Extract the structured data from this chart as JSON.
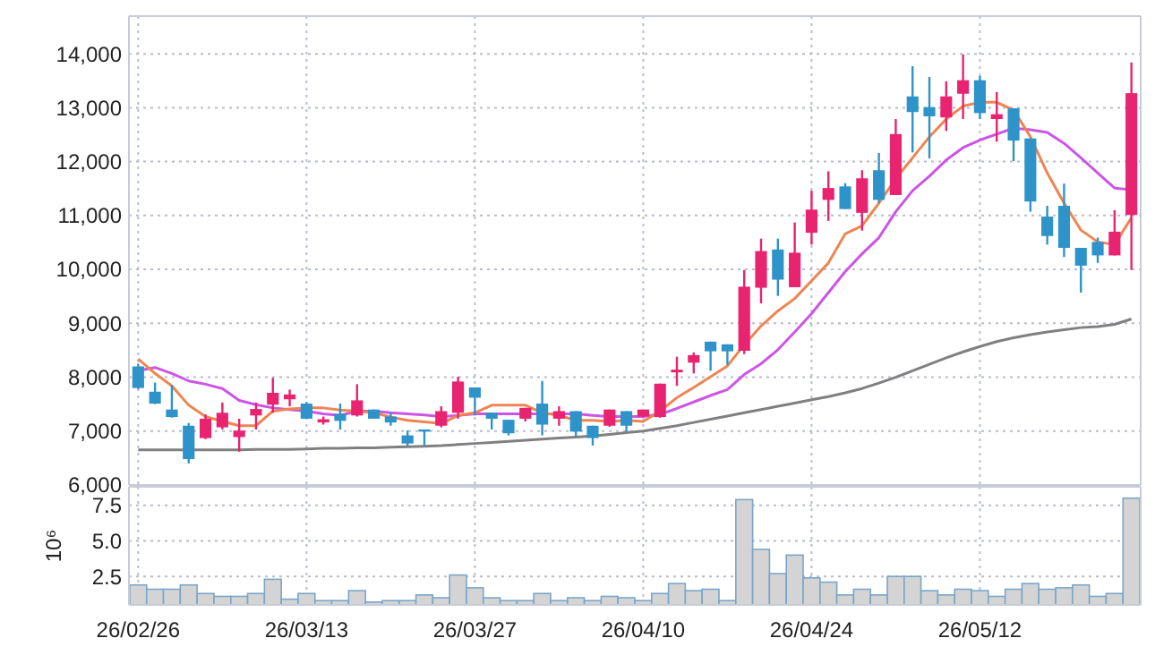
{
  "chart_data": [
    {
      "type": "candlestick",
      "categories": [
        null,
        null,
        null,
        null,
        null,
        null,
        null,
        null,
        null,
        null,
        null,
        null,
        null,
        null,
        null,
        null,
        null,
        null,
        null,
        null,
        null,
        null,
        null,
        null,
        null,
        null,
        null,
        null,
        null,
        null,
        null,
        null,
        null,
        null,
        null,
        null,
        null,
        null,
        null,
        null,
        null,
        null,
        null,
        null,
        null,
        null,
        null,
        null,
        null,
        null,
        null,
        null,
        null,
        null,
        null,
        null,
        null,
        null,
        null,
        null
      ],
      "ohlc": [
        [
          8200,
          8250,
          7780,
          7800
        ],
        [
          7730,
          7900,
          7500,
          7510
        ],
        [
          7400,
          7850,
          7250,
          7260
        ],
        [
          7100,
          7150,
          6400,
          6480
        ],
        [
          6870,
          7310,
          6850,
          7230
        ],
        [
          7070,
          7530,
          7030,
          7340
        ],
        [
          6890,
          7230,
          6620,
          7010
        ],
        [
          7290,
          7530,
          7030,
          7410
        ],
        [
          7490,
          7990,
          7340,
          7710
        ],
        [
          7590,
          7770,
          7460,
          7680
        ],
        [
          7510,
          7540,
          7230,
          7230
        ],
        [
          7160,
          7270,
          7120,
          7220
        ],
        [
          7320,
          7510,
          7030,
          7190
        ],
        [
          7290,
          7870,
          7270,
          7570
        ],
        [
          7400,
          7400,
          7230,
          7230
        ],
        [
          7270,
          7340,
          7100,
          7160
        ],
        [
          6920,
          7010,
          6730,
          6770
        ],
        [
          7030,
          7030,
          6730,
          6990
        ],
        [
          7100,
          7460,
          7070,
          7370
        ],
        [
          7340,
          8010,
          7230,
          7920
        ],
        [
          7810,
          7810,
          7290,
          7620
        ],
        [
          7340,
          7340,
          7030,
          7230
        ],
        [
          7210,
          7210,
          6920,
          6960
        ],
        [
          7230,
          7430,
          7180,
          7430
        ],
        [
          7510,
          7930,
          6920,
          7120
        ],
        [
          7230,
          7460,
          7100,
          7370
        ],
        [
          7370,
          7370,
          6900,
          6990
        ],
        [
          7100,
          7100,
          6730,
          6870
        ],
        [
          7100,
          7400,
          7080,
          7400
        ],
        [
          7370,
          7370,
          6990,
          7100
        ],
        [
          7270,
          7400,
          7260,
          7400
        ],
        [
          7260,
          7880,
          7250,
          7880
        ],
        [
          8090,
          8380,
          7840,
          8140
        ],
        [
          8270,
          8460,
          8070,
          8410
        ],
        [
          8660,
          8660,
          8120,
          8480
        ],
        [
          8610,
          8610,
          8230,
          8480
        ],
        [
          8490,
          9990,
          8430,
          9680
        ],
        [
          9660,
          10570,
          9370,
          10340
        ],
        [
          10370,
          10570,
          9510,
          9810
        ],
        [
          9670,
          10870,
          9670,
          10310
        ],
        [
          10680,
          11460,
          10460,
          11110
        ],
        [
          11290,
          11820,
          10900,
          11510
        ],
        [
          11540,
          11600,
          11120,
          11120
        ],
        [
          11050,
          11840,
          10720,
          11690
        ],
        [
          11840,
          12160,
          11230,
          11290
        ],
        [
          11380,
          12790,
          11380,
          12510
        ],
        [
          13210,
          13770,
          12170,
          12920
        ],
        [
          13010,
          13570,
          12060,
          12840
        ],
        [
          12820,
          13490,
          12570,
          13210
        ],
        [
          13260,
          13990,
          12790,
          13510
        ],
        [
          13510,
          13590,
          12790,
          12900
        ],
        [
          12790,
          13290,
          12370,
          12880
        ],
        [
          12990,
          12990,
          12010,
          12390
        ],
        [
          12430,
          12430,
          11070,
          11260
        ],
        [
          10980,
          11180,
          10460,
          10620
        ],
        [
          11180,
          11590,
          10230,
          10400
        ],
        [
          10400,
          10400,
          9570,
          10070
        ],
        [
          10510,
          10590,
          10120,
          10260
        ],
        [
          10260,
          11100,
          10260,
          10700
        ],
        [
          11010,
          13840,
          9990,
          13270
        ]
      ],
      "colors": [
        "#2e93c9",
        "#2e93c9",
        "#2e93c9",
        "#2e93c9",
        "#e8236f",
        "#e8236f",
        "#e8236f",
        "#e8236f",
        "#e8236f",
        "#e8236f",
        "#2e93c9",
        "#e8236f",
        "#2e93c9",
        "#e8236f",
        "#2e93c9",
        "#2e93c9",
        "#2e93c9",
        "#2e93c9",
        "#e8236f",
        "#e8236f",
        "#2e93c9",
        "#2e93c9",
        "#2e93c9",
        "#e8236f",
        "#2e93c9",
        "#e8236f",
        "#2e93c9",
        "#2e93c9",
        "#e8236f",
        "#2e93c9",
        "#e8236f",
        "#e8236f",
        "#e8236f",
        "#e8236f",
        "#2e93c9",
        "#2e93c9",
        "#e8236f",
        "#e8236f",
        "#2e93c9",
        "#e8236f",
        "#e8236f",
        "#e8236f",
        "#2e93c9",
        "#e8236f",
        "#2e93c9",
        "#e8236f",
        "#2e93c9",
        "#2e93c9",
        "#e8236f",
        "#e8236f",
        "#2e93c9",
        "#e8236f",
        "#2e93c9",
        "#2e93c9",
        "#2e93c9",
        "#2e93c9",
        "#2e93c9",
        "#2e93c9",
        "#e8236f",
        "#e8236f"
      ],
      "series": [
        {
          "type": "line",
          "color": "#808080",
          "values": [
            6650,
            6650,
            6650,
            6650,
            6650,
            6650,
            6650,
            6660,
            6660,
            6660,
            6670,
            6680,
            6680,
            6690,
            6690,
            6700,
            6710,
            6720,
            6730,
            6750,
            6770,
            6790,
            6810,
            6830,
            6850,
            6870,
            6890,
            6910,
            6940,
            6970,
            7000,
            7050,
            7100,
            7160,
            7220,
            7280,
            7340,
            7400,
            7460,
            7520,
            7580,
            7640,
            7710,
            7790,
            7890,
            8000,
            8120,
            8240,
            8360,
            8470,
            8570,
            8660,
            8730,
            8790,
            8840,
            8880,
            8920,
            8940,
            8980,
            9080
          ]
        },
        {
          "type": "line",
          "color": "#cc55e6",
          "values": [
            8120,
            8180,
            8070,
            7930,
            7870,
            7790,
            7570,
            7490,
            7430,
            7400,
            7370,
            7320,
            7290,
            7370,
            7370,
            7340,
            7320,
            7300,
            7270,
            7290,
            7320,
            7320,
            7320,
            7320,
            7320,
            7320,
            7320,
            7290,
            7270,
            7270,
            7270,
            7310,
            7420,
            7540,
            7660,
            7770,
            8050,
            8250,
            8510,
            8840,
            9180,
            9570,
            9960,
            10290,
            10590,
            11070,
            11460,
            11730,
            12030,
            12260,
            12400,
            12510,
            12620,
            12590,
            12540,
            12340,
            12070,
            11790,
            11510,
            11480
          ]
        },
        {
          "type": "line",
          "color": "#ee8552",
          "values": [
            8340,
            8070,
            7840,
            7480,
            7270,
            7180,
            7100,
            7100,
            7370,
            7410,
            7430,
            7430,
            7390,
            7370,
            7340,
            7260,
            7200,
            7170,
            7140,
            7290,
            7340,
            7480,
            7480,
            7480,
            7340,
            7290,
            7200,
            7200,
            7180,
            7200,
            7180,
            7370,
            7620,
            7810,
            8010,
            8210,
            8600,
            8950,
            9230,
            9460,
            9790,
            10120,
            10660,
            10810,
            11230,
            11680,
            12070,
            12460,
            12790,
            13030,
            13100,
            13100,
            12960,
            12460,
            11790,
            11230,
            10730,
            10510,
            10460,
            10960
          ]
        }
      ],
      "ylim": [
        6000,
        14700
      ],
      "yticks": [
        {
          "value": 6000,
          "label": "6,000"
        },
        {
          "value": 7000,
          "label": "7,000"
        },
        {
          "value": 8000,
          "label": "8,000"
        },
        {
          "value": 9000,
          "label": "9,000"
        },
        {
          "value": 10000,
          "label": "10,000"
        },
        {
          "value": 11000,
          "label": "11,000"
        },
        {
          "value": 12000,
          "label": "12,000"
        },
        {
          "value": 13000,
          "label": "13,000"
        },
        {
          "value": 14000,
          "label": "14,000"
        }
      ],
      "grid": true,
      "tick_labels": "y"
    },
    {
      "type": "bar",
      "ylabel": "10⁶",
      "categories": [
        "26/02/26",
        null,
        null,
        null,
        null,
        null,
        null,
        null,
        null,
        null,
        "26/03/13",
        null,
        null,
        null,
        null,
        null,
        null,
        null,
        null,
        null,
        "26/03/27",
        null,
        null,
        null,
        null,
        null,
        null,
        null,
        null,
        null,
        "26/04/10",
        null,
        null,
        null,
        null,
        null,
        null,
        null,
        null,
        null,
        "26/04/24",
        null,
        null,
        null,
        null,
        null,
        null,
        null,
        null,
        null,
        "26/05/12",
        null,
        null,
        null,
        null,
        null,
        null,
        null,
        null,
        null
      ],
      "values": [
        1.9,
        1.6,
        1.6,
        1.9,
        1.3,
        1.1,
        1.1,
        1.3,
        2.3,
        0.9,
        1.3,
        0.8,
        0.8,
        1.5,
        0.7,
        0.8,
        0.8,
        1.2,
        1,
        2.6,
        1.7,
        1,
        0.8,
        0.8,
        1.3,
        0.8,
        1,
        0.8,
        1.1,
        1,
        0.8,
        1.3,
        2,
        1.5,
        1.6,
        0.8,
        7.9,
        4.4,
        2.7,
        4,
        2.4,
        2.1,
        1.2,
        1.6,
        1.2,
        2.5,
        2.5,
        1.5,
        1.2,
        1.6,
        1.5,
        1.1,
        1.6,
        2,
        1.6,
        1.7,
        1.9,
        1.1,
        1.3,
        8
      ],
      "color": "#d4d4d4",
      "ylim": [
        0.5,
        8.8
      ],
      "yticks": [
        2.5,
        {
          "value": 5,
          "label": "5.0"
        },
        7.5
      ],
      "grid": true
    }
  ]
}
